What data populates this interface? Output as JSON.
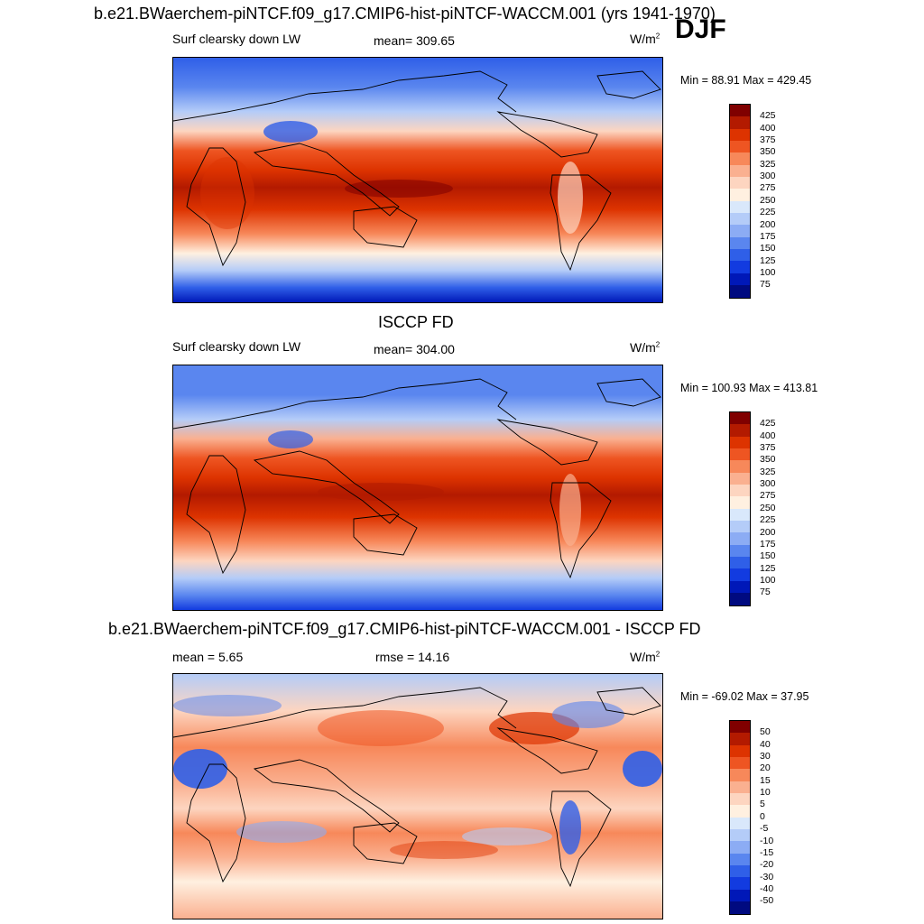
{
  "season": "DJF",
  "panel1": {
    "title": "b.e21.BWaerchem-piNTCF.f09_g17.CMIP6-hist-piNTCF-WACCM.001 (yrs 1941-1970)",
    "variable": "Surf clearsky down LW",
    "mean": "mean= 309.65",
    "units": "W/m",
    "units_exp": "2",
    "minmax": "Min =  88.91 Max = 429.45",
    "cbar_labels": [
      "425",
      "400",
      "375",
      "350",
      "325",
      "300",
      "275",
      "250",
      "225",
      "200",
      "175",
      "150",
      "125",
      "100",
      "75"
    ]
  },
  "panel2": {
    "title": "ISCCP FD",
    "variable": "Surf clearsky down LW",
    "mean": "mean= 304.00",
    "units": "W/m",
    "units_exp": "2",
    "minmax": "Min = 100.93 Max = 413.81",
    "cbar_labels": [
      "425",
      "400",
      "375",
      "350",
      "325",
      "300",
      "275",
      "250",
      "225",
      "200",
      "175",
      "150",
      "125",
      "100",
      "75"
    ]
  },
  "panel3": {
    "title": "b.e21.BWaerchem-piNTCF.f09_g17.CMIP6-hist-piNTCF-WACCM.001 - ISCCP FD",
    "mean": "mean =   5.65",
    "rmse": "rmse =  14.16",
    "units": "W/m",
    "units_exp": "2",
    "minmax": "Min = -69.02 Max =  37.95",
    "cbar_labels": [
      "50",
      "40",
      "30",
      "20",
      "15",
      "10",
      "5",
      "0",
      "-5",
      "-10",
      "-15",
      "-20",
      "-30",
      "-40",
      "-50"
    ]
  },
  "colors": {
    "abs_scale": [
      "#800000",
      "#b31a00",
      "#dd3300",
      "#ee5522",
      "#f7885a",
      "#fab090",
      "#fdd5c0",
      "#fff0e0",
      "#d9e8fb",
      "#b4ccf8",
      "#8cacf4",
      "#5a86ef",
      "#2f5fe8",
      "#123be0",
      "#0018b8",
      "#000a80"
    ],
    "diff_scale": [
      "#800000",
      "#b31a00",
      "#dd3300",
      "#ee5522",
      "#f7885a",
      "#fab090",
      "#fdd5c0",
      "#fff0e0",
      "#d9e8fb",
      "#b4ccf8",
      "#8cacf4",
      "#5a86ef",
      "#2f5fe8",
      "#123be0",
      "#0018b8",
      "#000a80"
    ]
  }
}
